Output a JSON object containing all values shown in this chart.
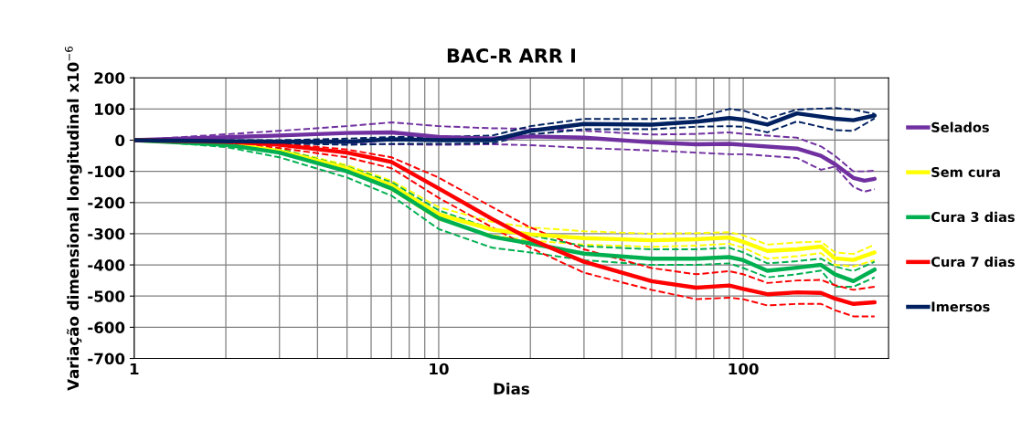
{
  "chart_data": {
    "type": "line",
    "title": "BAC-R ARR I",
    "xlabel": "Dias",
    "ylabel": "Variação dimensional longitudinal x10$^{−6}$",
    "log": "x",
    "xlim": [
      1,
      300
    ],
    "xticks": [
      1,
      {
        "value": 2,
        "label": null
      },
      {
        "value": 3,
        "label": null
      },
      {
        "value": 4,
        "label": null
      },
      {
        "value": 5,
        "label": null
      },
      {
        "value": 6,
        "label": null
      },
      {
        "value": 7,
        "label": null
      },
      {
        "value": 8,
        "label": null
      },
      {
        "value": 9,
        "label": null
      },
      10,
      {
        "value": 20,
        "label": null
      },
      {
        "value": 30,
        "label": null
      },
      {
        "value": 40,
        "label": null
      },
      {
        "value": 50,
        "label": null
      },
      {
        "value": 60,
        "label": null
      },
      {
        "value": 70,
        "label": null
      },
      {
        "value": 80,
        "label": null
      },
      {
        "value": 90,
        "label": null
      },
      100,
      {
        "value": 200,
        "label": null
      }
    ],
    "ylim": [
      -700,
      200
    ],
    "yticks": [
      -700,
      -600,
      -500,
      -400,
      -300,
      -200,
      -100,
      0,
      100,
      200
    ],
    "grid": true,
    "legend": "right",
    "marker": "none",
    "line_style": "solid",
    "series": [
      {
        "color": "#7030a0",
        "line_style": "dashed",
        "x": [
          1,
          3,
          5,
          7,
          10,
          15,
          20,
          30,
          50,
          70,
          90,
          100,
          150,
          180,
          200,
          230,
          250,
          270
        ],
        "values": [
          0,
          30,
          45,
          57,
          45,
          38,
          37,
          30,
          18,
          20,
          25,
          20,
          8,
          -20,
          -50,
          -100,
          -100,
          -98
        ]
      },
      {
        "color": "#7030a0",
        "line_style": "dashed",
        "x": [
          1,
          3,
          5,
          7,
          10,
          15,
          20,
          30,
          50,
          70,
          90,
          100,
          150,
          180,
          200,
          230,
          250,
          270
        ],
        "values": [
          0,
          -5,
          -10,
          -13,
          -15,
          -13,
          -16,
          -25,
          -33,
          -40,
          -45,
          -45,
          -57,
          -95,
          -85,
          -150,
          -165,
          -157
        ]
      },
      {
        "color": "#ffff00",
        "line_style": "dashed",
        "x": [
          1,
          2,
          3,
          5,
          7,
          10,
          15,
          20,
          30,
          50,
          70,
          90,
          100,
          120,
          150,
          180,
          200,
          230,
          270
        ],
        "values": [
          0,
          -5,
          -28,
          -80,
          -130,
          -215,
          -262,
          -280,
          -292,
          -300,
          -298,
          -295,
          -305,
          -335,
          -328,
          -325,
          -360,
          -365,
          -335
        ]
      },
      {
        "color": "#ffff00",
        "line_style": "dashed",
        "x": [
          1,
          2,
          3,
          5,
          7,
          10,
          15,
          20,
          30,
          50,
          70,
          90,
          100,
          120,
          150,
          180,
          200,
          230,
          270
        ],
        "values": [
          0,
          -15,
          -42,
          -100,
          -160,
          -255,
          -305,
          -322,
          -335,
          -342,
          -338,
          -332,
          -345,
          -380,
          -372,
          -362,
          -400,
          -405,
          -385
        ]
      },
      {
        "color": "#00b050",
        "line_style": "dashed",
        "x": [
          1,
          2,
          3,
          5,
          7,
          10,
          15,
          20,
          30,
          50,
          70,
          90,
          100,
          120,
          150,
          180,
          200,
          230,
          270
        ],
        "values": [
          0,
          -8,
          -28,
          -85,
          -135,
          -225,
          -285,
          -305,
          -340,
          -350,
          -350,
          -345,
          -360,
          -395,
          -388,
          -380,
          -405,
          -420,
          -390
        ]
      },
      {
        "color": "#00b050",
        "line_style": "dashed",
        "x": [
          1,
          2,
          3,
          5,
          7,
          10,
          15,
          20,
          30,
          50,
          70,
          90,
          100,
          120,
          150,
          180,
          200,
          230,
          270
        ],
        "values": [
          0,
          -22,
          -55,
          -120,
          -178,
          -285,
          -345,
          -360,
          -385,
          -400,
          -400,
          -395,
          -410,
          -440,
          -430,
          -418,
          -470,
          -470,
          -440
        ]
      },
      {
        "color": "#ff0000",
        "line_style": "dashed",
        "x": [
          1,
          2,
          3,
          5,
          7,
          10,
          15,
          20,
          30,
          50,
          70,
          90,
          100,
          120,
          150,
          180,
          200,
          230,
          270
        ],
        "values": [
          0,
          -3,
          -10,
          -30,
          -55,
          -120,
          -215,
          -280,
          -350,
          -410,
          -430,
          -420,
          -430,
          -458,
          -450,
          -448,
          -465,
          -480,
          -470
        ]
      },
      {
        "color": "#ff0000",
        "line_style": "dashed",
        "x": [
          1,
          2,
          3,
          5,
          7,
          10,
          15,
          20,
          30,
          50,
          70,
          90,
          100,
          120,
          150,
          180,
          200,
          230,
          270
        ],
        "values": [
          0,
          -10,
          -25,
          -55,
          -90,
          -185,
          -280,
          -345,
          -425,
          -480,
          -510,
          -505,
          -510,
          -530,
          -525,
          -525,
          -545,
          -565,
          -565
        ]
      },
      {
        "color": "#002060",
        "line_style": "dashed",
        "x": [
          1,
          3,
          5,
          7,
          10,
          15,
          20,
          30,
          50,
          70,
          90,
          100,
          120,
          150,
          200,
          230,
          270
        ],
        "values": [
          0,
          0,
          5,
          10,
          10,
          15,
          45,
          68,
          68,
          72,
          100,
          95,
          69,
          98,
          103,
          98,
          84
        ]
      },
      {
        "color": "#002060",
        "line_style": "dashed",
        "x": [
          1,
          3,
          5,
          7,
          10,
          15,
          20,
          30,
          50,
          70,
          90,
          100,
          120,
          150,
          200,
          230,
          270
        ],
        "values": [
          0,
          -10,
          -15,
          -12,
          -12,
          -10,
          18,
          35,
          35,
          43,
          45,
          43,
          25,
          60,
          32,
          30,
          70
        ]
      },
      {
        "name": "Selados",
        "color": "#7030a0",
        "x": [
          1,
          3,
          5,
          7,
          10,
          15,
          20,
          30,
          50,
          70,
          90,
          100,
          150,
          180,
          200,
          230,
          250,
          270
        ],
        "values": [
          0,
          15,
          23,
          25,
          10,
          5,
          12,
          8,
          -7,
          -13,
          -12,
          -15,
          -27,
          -50,
          -77,
          -121,
          -130,
          -124
        ]
      },
      {
        "name": "Sem cura",
        "color": "#ffff00",
        "x": [
          1,
          2,
          3,
          5,
          7,
          10,
          15,
          20,
          30,
          50,
          70,
          90,
          100,
          120,
          150,
          180,
          200,
          230,
          270
        ],
        "values": [
          0,
          -10,
          -35,
          -90,
          -145,
          -238,
          -287,
          -302,
          -314,
          -321,
          -318,
          -312,
          -326,
          -355,
          -350,
          -341,
          -379,
          -384,
          -360
        ]
      },
      {
        "name": "Cura 3 dias",
        "color": "#00b050",
        "x": [
          1,
          2,
          3,
          5,
          7,
          10,
          15,
          20,
          30,
          50,
          70,
          90,
          100,
          120,
          150,
          180,
          200,
          230,
          270
        ],
        "values": [
          0,
          -15,
          -40,
          -100,
          -155,
          -250,
          -310,
          -331,
          -364,
          -380,
          -380,
          -375,
          -385,
          -419,
          -409,
          -400,
          -430,
          -452,
          -415
        ]
      },
      {
        "name": "Cura 7 dias",
        "color": "#ff0000",
        "x": [
          1,
          2,
          3,
          5,
          7,
          10,
          15,
          20,
          30,
          50,
          70,
          90,
          100,
          120,
          150,
          180,
          200,
          230,
          270
        ],
        "values": [
          0,
          -5,
          -15,
          -40,
          -70,
          -155,
          -253,
          -318,
          -390,
          -452,
          -473,
          -466,
          -477,
          -494,
          -488,
          -490,
          -508,
          -525,
          -520
        ]
      },
      {
        "name": "Imersos",
        "color": "#002060",
        "x": [
          1,
          3,
          5,
          7,
          10,
          15,
          20,
          30,
          50,
          70,
          90,
          100,
          120,
          150,
          200,
          230,
          270
        ],
        "values": [
          0,
          -5,
          -5,
          3,
          0,
          0,
          30,
          52,
          50,
          59,
          71,
          66,
          50,
          86,
          69,
          64,
          79
        ]
      }
    ]
  }
}
